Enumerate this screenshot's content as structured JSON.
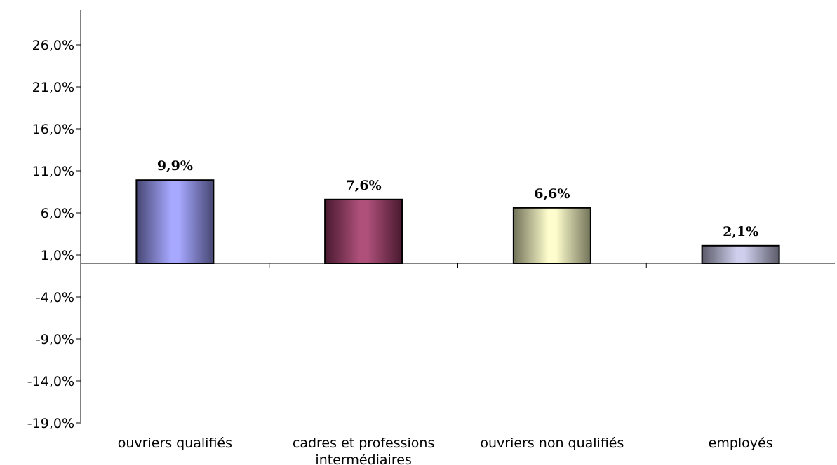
{
  "chart_data": {
    "type": "bar",
    "categories": [
      [
        "ouvriers qualifiés"
      ],
      [
        "cadres et professions",
        "intermédiaires"
      ],
      [
        "ouvriers non qualifiés"
      ],
      [
        "employés"
      ]
    ],
    "values": [
      9.9,
      7.6,
      6.6,
      2.1
    ],
    "data_labels": [
      "9,9%",
      "7,6%",
      "6,6%",
      "2,1%"
    ],
    "bar_colors": [
      "#9b9cff",
      "#a33868",
      "#fdfdc6",
      "#c9c9ea"
    ],
    "bar_edge_colors": [
      "#3a3a78",
      "#4a0f2c",
      "#8a8a60",
      "#5a5a80"
    ],
    "y_ticks": [
      {
        "value": 26,
        "label": "26,0%"
      },
      {
        "value": 21,
        "label": "21,0%"
      },
      {
        "value": 16,
        "label": "16,0%"
      },
      {
        "value": 11,
        "label": "11,0%"
      },
      {
        "value": 6,
        "label": "6,0%"
      },
      {
        "value": 1,
        "label": "1,0%"
      },
      {
        "value": -4,
        "label": "-4,0%"
      },
      {
        "value": -9,
        "label": "-9,0%"
      },
      {
        "value": -14,
        "label": "-14,0%"
      },
      {
        "value": -19,
        "label": "-19,0%"
      }
    ],
    "ylim": [
      -19,
      31
    ],
    "baseline": 0,
    "grid": false,
    "legend": "none",
    "title": "",
    "xlabel": "",
    "ylabel": ""
  }
}
